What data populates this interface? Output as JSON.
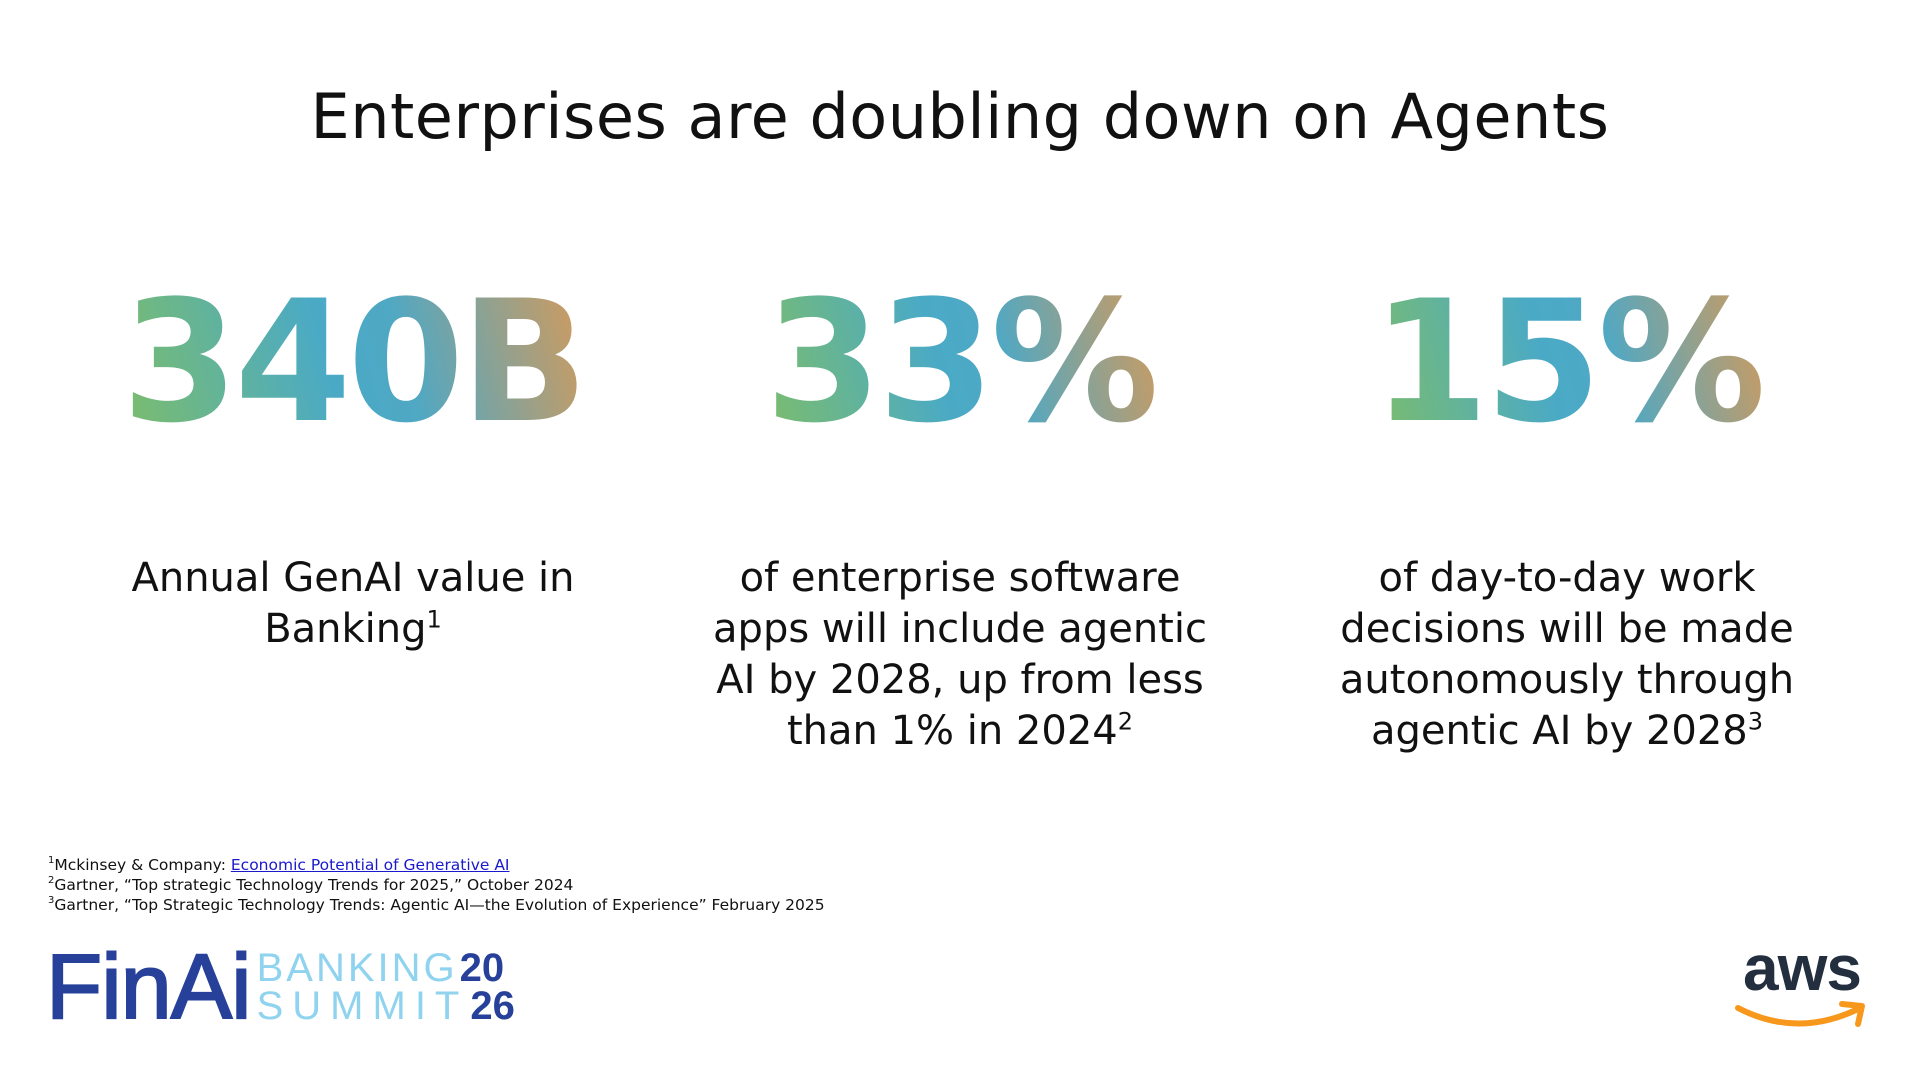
{
  "title": "Enterprises are doubling down on Agents",
  "stats": [
    {
      "value": "340B",
      "description": "Annual GenAI value in Banking",
      "ref": "1"
    },
    {
      "value": "33%",
      "description": "of enterprise software apps will include agentic AI by 2028, up from less than 1% in 2024",
      "ref": "2"
    },
    {
      "value": "15%",
      "description": "of day-to-day work decisions will be made autonomously through agentic AI by 2028",
      "ref": "3"
    }
  ],
  "footnotes": [
    {
      "num": "1",
      "text": "Mckinsey & Company: ",
      "link": "Economic Potential of Generative AI "
    },
    {
      "num": "2",
      "text": "Gartner, “Top strategic Technology Trends for 2025,” October 2024"
    },
    {
      "num": "3",
      "text": "Gartner, “Top Strategic Technology Trends: Agentic AI—the Evolution of Experience” February 2025"
    }
  ],
  "logo_left": {
    "brand": "FinAi",
    "line1": "BANKING",
    "line2": "SUMMIT",
    "year1": "20",
    "year2": "26"
  },
  "logo_right": {
    "brand": "aws"
  },
  "colors": {
    "gradient_start": "#7dbd6a",
    "gradient_mid": "#4aaac6",
    "gradient_end": "#d59a5a",
    "finai_dark": "#27419a",
    "finai_light": "#8fd3ef",
    "aws_orange": "#f7981d"
  }
}
